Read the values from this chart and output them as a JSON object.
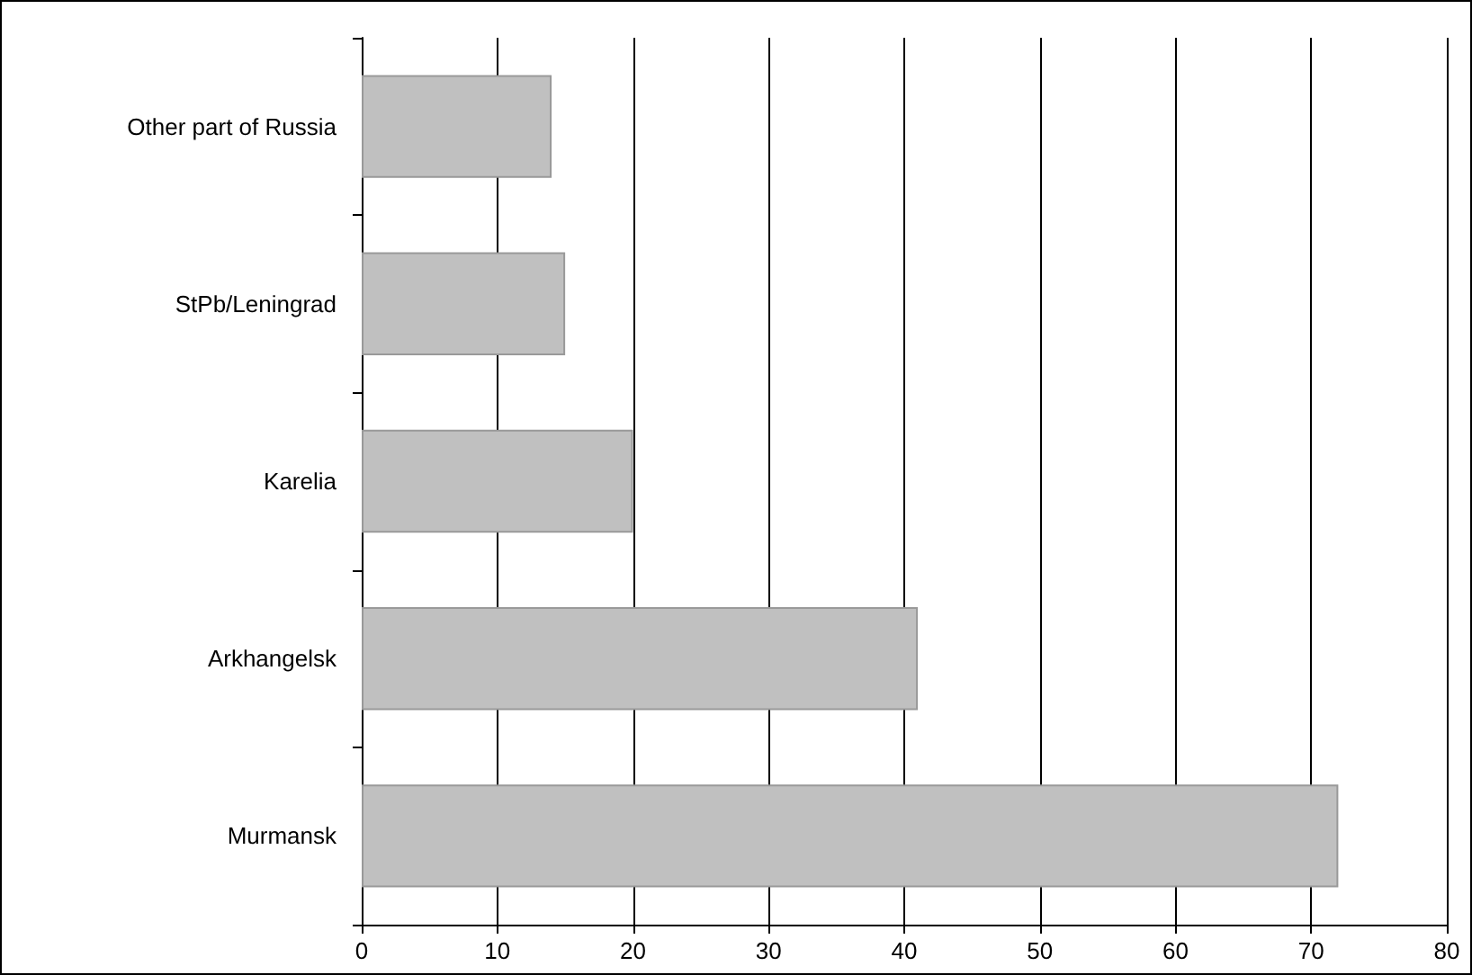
{
  "chart_data": {
    "type": "bar",
    "orientation": "horizontal",
    "categories": [
      "Other part of Russia",
      "StPb/Leningrad",
      "Karelia",
      "Arkhangelsk",
      "Murmansk"
    ],
    "values": [
      14,
      15,
      20,
      41,
      72
    ],
    "color": "#c0c0c0",
    "xlim": [
      0,
      80
    ],
    "xticks": [
      0,
      10,
      20,
      30,
      40,
      50,
      60,
      70,
      80
    ],
    "grid": "x"
  }
}
